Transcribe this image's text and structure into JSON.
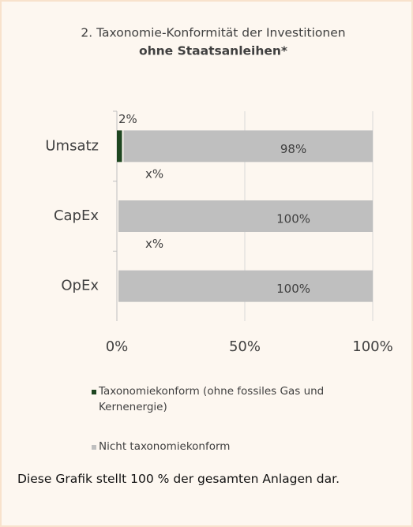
{
  "chart_data": {
    "type": "stacked_barh",
    "title": "2. Taxonomie-Konformität der Investitionen",
    "subtitle": "ohne Staatsanleihen*",
    "categories": [
      "Umsatz",
      "CapEx",
      "OpEx"
    ],
    "series": [
      {
        "name": "Taxonomiekonform (ohne fossiles Gas und Kernenergie)",
        "color": "#1e4620",
        "values": [
          2,
          null,
          null
        ],
        "value_labels": [
          "2%",
          "x%",
          "x%"
        ]
      },
      {
        "name": "Nicht taxonomiekonform",
        "color": "#bfbfbf",
        "values": [
          98,
          100,
          100
        ],
        "value_labels": [
          "98%",
          "100%",
          "100%"
        ]
      }
    ],
    "xlim": [
      0,
      100
    ],
    "xticks": [
      {
        "value": 0,
        "label": "0%"
      },
      {
        "value": 50,
        "label": "50%"
      },
      {
        "value": 100,
        "label": "100%"
      }
    ],
    "grid": true,
    "footnote": "Diese Grafik stellt 100 % der gesamten Anlagen dar."
  }
}
